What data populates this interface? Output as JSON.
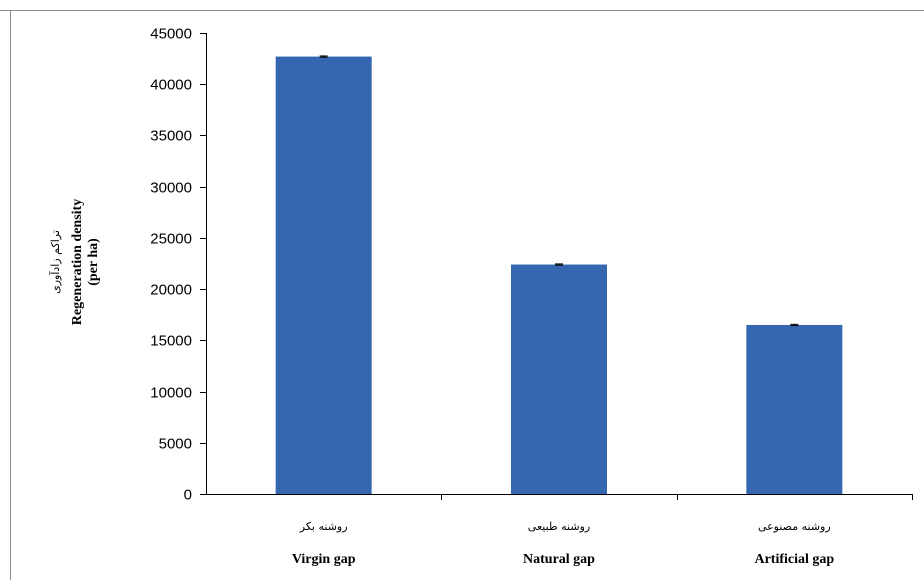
{
  "chart_data": {
    "type": "bar",
    "title": "",
    "categories": [
      {
        "fa": "روشنه بکر",
        "en": "Virgin gap"
      },
      {
        "fa": "روشنه طبیعی",
        "en": "Natural gap"
      },
      {
        "fa": "روشنه مصنوعی",
        "en": "Artificial gap"
      }
    ],
    "values": [
      42700,
      22400,
      16500
    ],
    "error": [
      60,
      60,
      60
    ],
    "ylabel_fa": "تراکم زادآوری",
    "ylabel_en_line1": "Regeneration density",
    "ylabel_en_line2": "(per ha)",
    "ylim": [
      0,
      45000
    ],
    "yticks": [
      0,
      5000,
      10000,
      15000,
      20000,
      25000,
      30000,
      35000,
      40000,
      45000
    ],
    "bar_color": "#3567B1",
    "grid": false,
    "legend": "none"
  }
}
